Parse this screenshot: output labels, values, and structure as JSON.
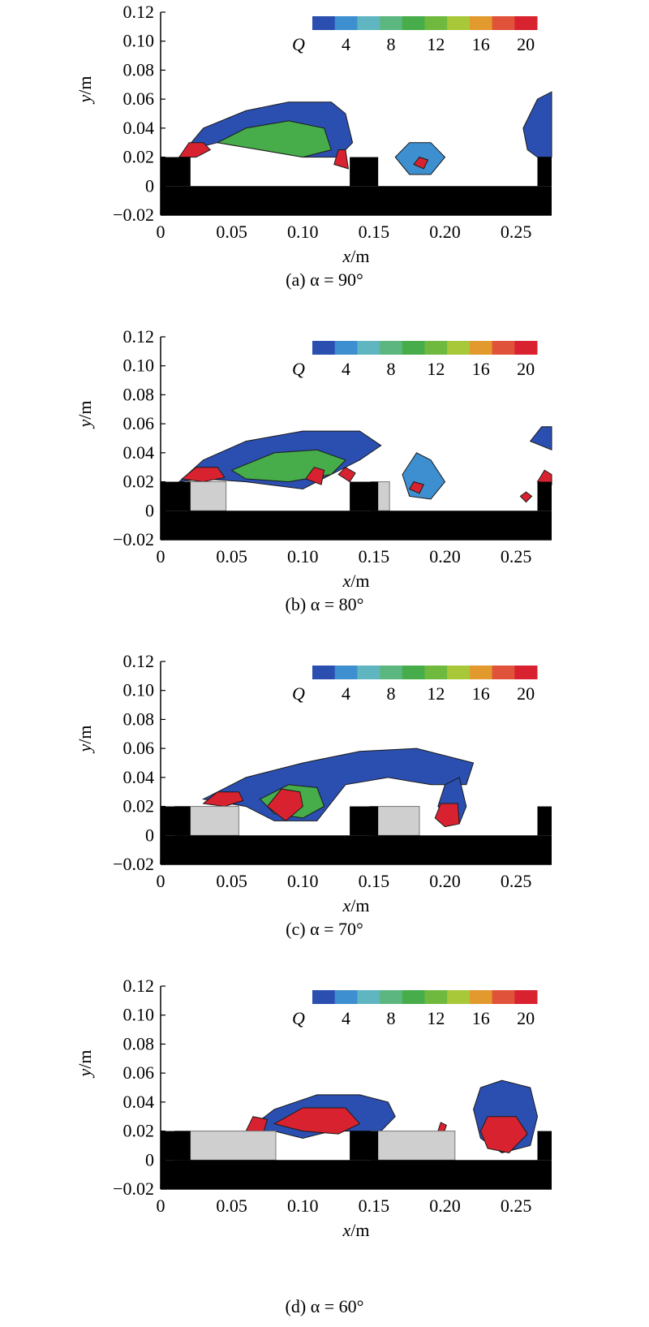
{
  "colorbar": {
    "label": "Q",
    "ticks": [
      "4",
      "8",
      "12",
      "16",
      "20"
    ],
    "levels": [
      2,
      4,
      6,
      8,
      10,
      12,
      14,
      16,
      18,
      20
    ],
    "colors": [
      "#2b4fb0",
      "#3d8fd0",
      "#5fb6c1",
      "#5bb680",
      "#46ad4a",
      "#6fba3e",
      "#a8c83a",
      "#e29a2e",
      "#e0533a",
      "#d8222f"
    ]
  },
  "colors": {
    "wall": "#000000",
    "obstacle": "#cfcfcf",
    "obstacle_edge": "#7a7a7a",
    "low": "#2b4fb0",
    "high": "#e0222c"
  },
  "chart_data": [
    {
      "type": "heatmap",
      "caption": "(a) α = 90°",
      "alpha_deg": 90,
      "xlabel": "x/m",
      "ylabel": "y/m",
      "xlim": [
        0,
        0.275
      ],
      "ylim": [
        -0.02,
        0.12
      ],
      "xticks": [
        "0",
        "0.05",
        "0.10",
        "0.15",
        "0.20",
        "0.25"
      ],
      "yticks": [
        "0.12",
        "0.10",
        "0.08",
        "0.06",
        "0.04",
        "0.02",
        "0",
        "−0.02"
      ],
      "colorbar_label": "Q",
      "colorbar_range": [
        2,
        20
      ],
      "obstacles": []
    },
    {
      "type": "heatmap",
      "caption": "(b) α = 80°",
      "alpha_deg": 80,
      "xlabel": "x/m",
      "ylabel": "y/m",
      "xlim": [
        0,
        0.275
      ],
      "ylim": [
        -0.02,
        0.12
      ],
      "xticks": [
        "0",
        "0.05",
        "0.10",
        "0.15",
        "0.20",
        "0.25"
      ],
      "yticks": [
        "0.12",
        "0.10",
        "0.08",
        "0.06",
        "0.04",
        "0.02",
        "0",
        "−0.02"
      ],
      "colorbar_label": "Q",
      "colorbar_range": [
        2,
        20
      ],
      "obstacles": [
        [
          0.019,
          0.046
        ],
        [
          0.148,
          0.161
        ]
      ]
    },
    {
      "type": "heatmap",
      "caption": "(c) α = 70°",
      "alpha_deg": 70,
      "xlabel": "x/m",
      "ylabel": "y/m",
      "xlim": [
        0,
        0.275
      ],
      "ylim": [
        -0.02,
        0.12
      ],
      "xticks": [
        "0",
        "0.05",
        "0.10",
        "0.15",
        "0.20",
        "0.25"
      ],
      "yticks": [
        "0.12",
        "0.10",
        "0.08",
        "0.06",
        "0.04",
        "0.02",
        "0",
        "−0.02"
      ],
      "colorbar_label": "Q",
      "colorbar_range": [
        2,
        20
      ],
      "obstacles": [
        [
          0.01,
          0.055
        ],
        [
          0.147,
          0.182
        ]
      ]
    },
    {
      "type": "heatmap",
      "caption": "(d) α = 60°",
      "alpha_deg": 60,
      "xlabel": "x/m",
      "ylabel": "y/m",
      "xlim": [
        0,
        0.275
      ],
      "ylim": [
        -0.02,
        0.12
      ],
      "xticks": [
        "0",
        "0.05",
        "0.10",
        "0.15",
        "0.20",
        "0.25"
      ],
      "yticks": [
        "0.12",
        "0.10",
        "0.08",
        "0.06",
        "0.04",
        "0.02",
        "0",
        "−0.02"
      ],
      "colorbar_label": "Q",
      "colorbar_range": [
        2,
        20
      ],
      "obstacles": [
        [
          0.01,
          0.081
        ],
        [
          0.148,
          0.207
        ]
      ]
    }
  ]
}
